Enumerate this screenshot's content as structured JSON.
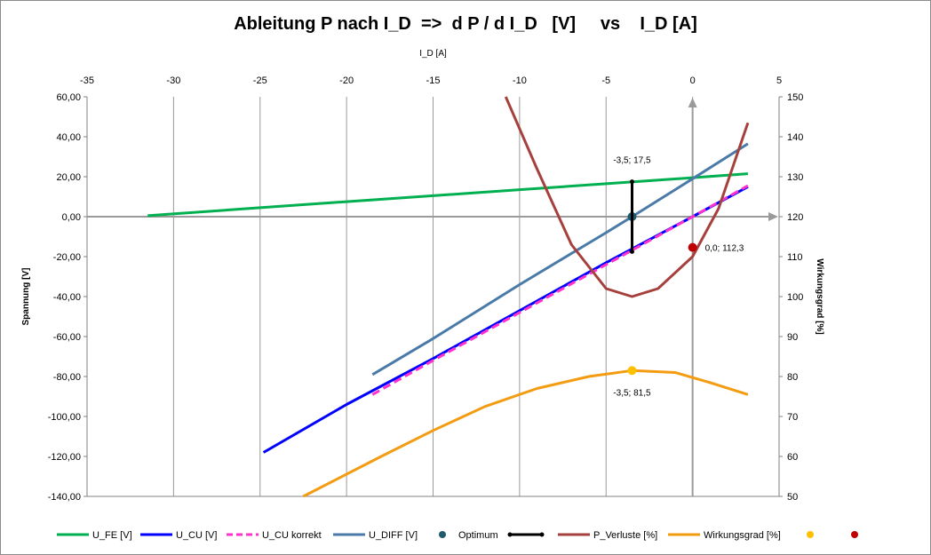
{
  "chart_data": {
    "type": "line",
    "title": "Ableitung P nach I_D  =>  d P / d I_D   [V]     vs    I_D [A]",
    "xlabel": "I_D [A]",
    "ylabel_left": "Spannung [V]",
    "ylabel_right": "Wirkungsgrad [%]",
    "xlim": [
      -35,
      5
    ],
    "ylim_left": [
      -140,
      60
    ],
    "ylim_right": [
      50,
      150
    ],
    "x_ticks": [
      "-35",
      "-30",
      "-25",
      "-20",
      "-15",
      "-10",
      "-5",
      "0",
      "5"
    ],
    "y_left_ticks": [
      "60,00",
      "40,00",
      "20,00",
      "0,00",
      "-20,00",
      "-40,00",
      "-60,00",
      "-80,00",
      "-100,00",
      "-120,00",
      "-140,00"
    ],
    "y_right_ticks": [
      "150",
      "140",
      "130",
      "120",
      "110",
      "100",
      "90",
      "80",
      "70",
      "60",
      "50"
    ],
    "grid": "vertical",
    "legend_position": "bottom",
    "series": [
      {
        "name": "U_FE [V]",
        "axis": "left",
        "color": "#00b050",
        "style": "solid",
        "points": [
          [
            -31.5,
            0.5
          ],
          [
            -25,
            4.5
          ],
          [
            -20,
            7.5
          ],
          [
            -15,
            10.5
          ],
          [
            -10,
            13.5
          ],
          [
            -5,
            16.5
          ],
          [
            0,
            19.5
          ],
          [
            3.2,
            21.5
          ]
        ]
      },
      {
        "name": "U_CU [V]",
        "axis": "left",
        "color": "#0000ff",
        "style": "solid",
        "points": [
          [
            -24.8,
            -118
          ],
          [
            -20,
            -94
          ],
          [
            -15,
            -71
          ],
          [
            -10,
            -47
          ],
          [
            -5,
            -23
          ],
          [
            0,
            0
          ],
          [
            3.2,
            15
          ]
        ]
      },
      {
        "name": "U_CU korrekt",
        "axis": "left",
        "color": "#ff33cc",
        "style": "dashed",
        "points": [
          [
            -18.5,
            -89
          ],
          [
            -15,
            -72
          ],
          [
            -10,
            -48
          ],
          [
            -5,
            -24
          ],
          [
            0,
            0
          ],
          [
            3.2,
            15.5
          ]
        ]
      },
      {
        "name": "U_DIFF [V]",
        "axis": "left",
        "color": "#4a7aa8",
        "style": "solid",
        "points": [
          [
            -18.5,
            -79
          ],
          [
            -15,
            -61
          ],
          [
            -10,
            -34
          ],
          [
            -5,
            -8
          ],
          [
            -3.5,
            0
          ],
          [
            0,
            19
          ],
          [
            3.2,
            36.5
          ]
        ]
      },
      {
        "name": "Optimum",
        "axis": "left",
        "color": "#1f5a6f",
        "style": "marker",
        "points": [
          [
            -3.5,
            0
          ]
        ]
      },
      {
        "name": "",
        "axis": "left",
        "color": "#000000",
        "style": "solid-markers",
        "points": [
          [
            -3.5,
            17.5
          ],
          [
            -3.5,
            -17.5
          ]
        ]
      },
      {
        "name": "P_Verluste [%]",
        "axis": "right",
        "color": "#a6403c",
        "style": "solid",
        "points": [
          [
            -10.8,
            150
          ],
          [
            -9,
            132
          ],
          [
            -7,
            113
          ],
          [
            -5,
            102
          ],
          [
            -3.5,
            100
          ],
          [
            -2,
            102
          ],
          [
            0,
            110
          ],
          [
            1.5,
            122
          ],
          [
            3.2,
            143.5
          ]
        ]
      },
      {
        "name": "Wirkungsgrad [%]",
        "axis": "right",
        "color": "#f39c12",
        "style": "solid",
        "points": [
          [
            -22.5,
            50
          ],
          [
            -18,
            60
          ],
          [
            -15,
            66.5
          ],
          [
            -12,
            72.5
          ],
          [
            -9,
            77
          ],
          [
            -6,
            80
          ],
          [
            -3.5,
            81.5
          ],
          [
            -1,
            81
          ],
          [
            1,
            78.5
          ],
          [
            3.2,
            75.5
          ]
        ]
      },
      {
        "name": "",
        "axis": "right",
        "color": "#ffc000",
        "style": "marker",
        "points": [
          [
            -3.5,
            81.5
          ]
        ]
      },
      {
        "name": "",
        "axis": "right",
        "color": "#c00000",
        "style": "marker",
        "points": [
          [
            0,
            112.3
          ]
        ]
      }
    ],
    "annotations": [
      {
        "text": "-3,5; 17,5",
        "x": -3.5,
        "y": 17.5,
        "axis": "left"
      },
      {
        "text": "0,0; 112,3",
        "x": 0,
        "y": 112.3,
        "axis": "right"
      },
      {
        "text": "-3,5; 81,5",
        "x": -3.5,
        "y": 81.5,
        "axis": "right"
      }
    ]
  }
}
